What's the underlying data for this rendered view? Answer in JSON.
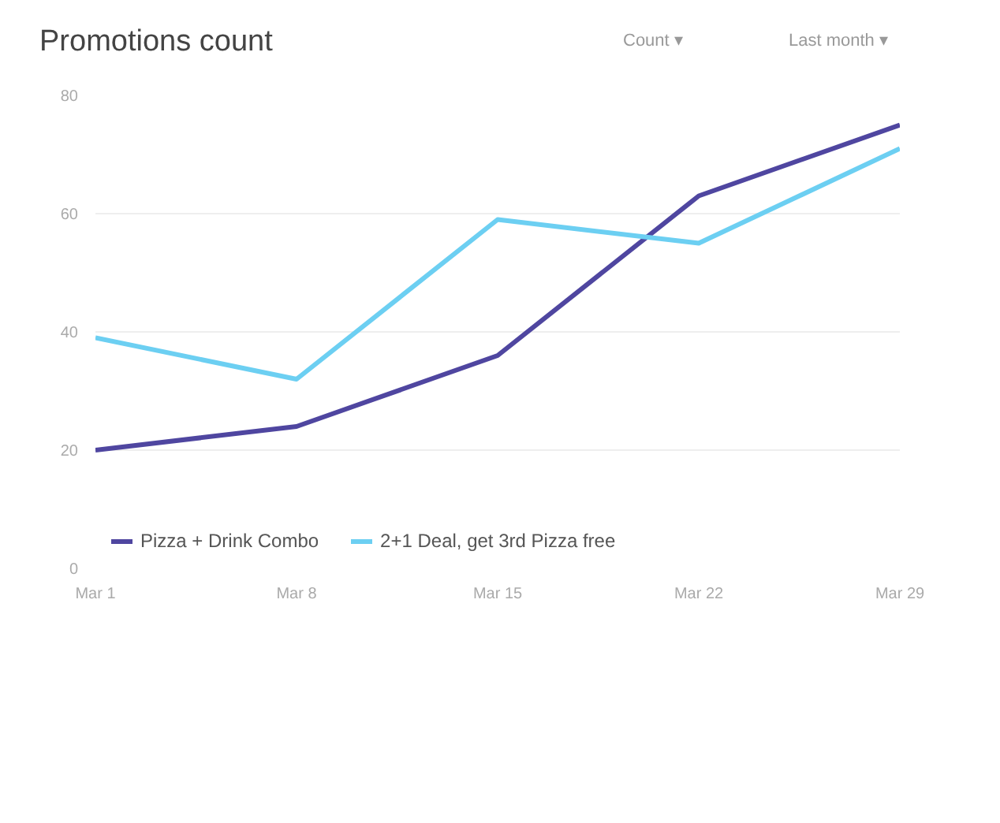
{
  "chart_data": {
    "type": "line",
    "title": "Promotions  count",
    "annotations": [
      "Count ▾",
      "Last month ▾"
    ],
    "categories": [
      "Mar 1",
      "Mar 8",
      "Mar 15",
      "Mar 22",
      "Mar 29"
    ],
    "series": [
      {
        "name": "Pizza + Drink Combo",
        "color": "#4f46a0",
        "values": [
          20,
          24,
          36,
          63,
          75
        ]
      },
      {
        "name": "2+1 Deal, get 3rd Pizza free",
        "color": "#6ccff2",
        "values": [
          39,
          32,
          59,
          55,
          71
        ]
      }
    ],
    "ylim": [
      0,
      80
    ],
    "yticks": [
      0,
      20,
      40,
      60,
      80
    ],
    "grid": "y",
    "legend": "bottom left",
    "marker": "none",
    "line_style": "solid"
  }
}
